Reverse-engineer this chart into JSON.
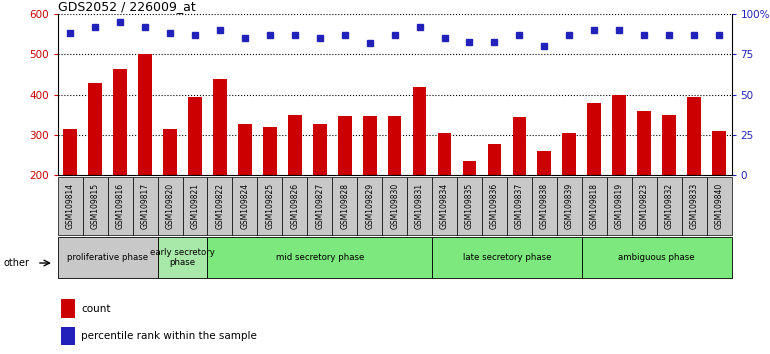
{
  "title": "GDS2052 / 226009_at",
  "samples": [
    "GSM109814",
    "GSM109815",
    "GSM109816",
    "GSM109817",
    "GSM109820",
    "GSM109821",
    "GSM109822",
    "GSM109824",
    "GSM109825",
    "GSM109826",
    "GSM109827",
    "GSM109828",
    "GSM109829",
    "GSM109830",
    "GSM109831",
    "GSM109834",
    "GSM109835",
    "GSM109836",
    "GSM109837",
    "GSM109838",
    "GSM109839",
    "GSM109818",
    "GSM109819",
    "GSM109823",
    "GSM109832",
    "GSM109833",
    "GSM109840"
  ],
  "counts": [
    315,
    428,
    464,
    500,
    315,
    395,
    438,
    328,
    320,
    350,
    328,
    348,
    348,
    348,
    418,
    305,
    235,
    278,
    345,
    260,
    305,
    380,
    400,
    360,
    350,
    395,
    310
  ],
  "percentiles": [
    88,
    92,
    95,
    92,
    88,
    87,
    90,
    85,
    87,
    87,
    85,
    87,
    82,
    87,
    92,
    85,
    83,
    83,
    87,
    80,
    87,
    90,
    90,
    87,
    87,
    87,
    87
  ],
  "bar_color": "#cc0000",
  "dot_color": "#2222bb",
  "ylim_left": [
    200,
    600
  ],
  "ylim_right": [
    0,
    100
  ],
  "yticks_left": [
    200,
    300,
    400,
    500,
    600
  ],
  "yticks_right": [
    0,
    25,
    50,
    75,
    100
  ],
  "ytick_labels_right": [
    "0",
    "25",
    "50",
    "75",
    "100%"
  ],
  "phases": [
    {
      "label": "proliferative phase",
      "start": 0,
      "end": 4,
      "color": "#c8c8c8"
    },
    {
      "label": "early secretory\nphase",
      "start": 4,
      "end": 6,
      "color": "#a8e8a8"
    },
    {
      "label": "mid secretory phase",
      "start": 6,
      "end": 15,
      "color": "#7de87d"
    },
    {
      "label": "late secretory phase",
      "start": 15,
      "end": 21,
      "color": "#7de87d"
    },
    {
      "label": "ambiguous phase",
      "start": 21,
      "end": 27,
      "color": "#7de87d"
    }
  ],
  "tick_cell_color": "#c8c8c8",
  "background_color": "#ffffff",
  "legend_count_label": "count",
  "legend_pct_label": "percentile rank within the sample"
}
